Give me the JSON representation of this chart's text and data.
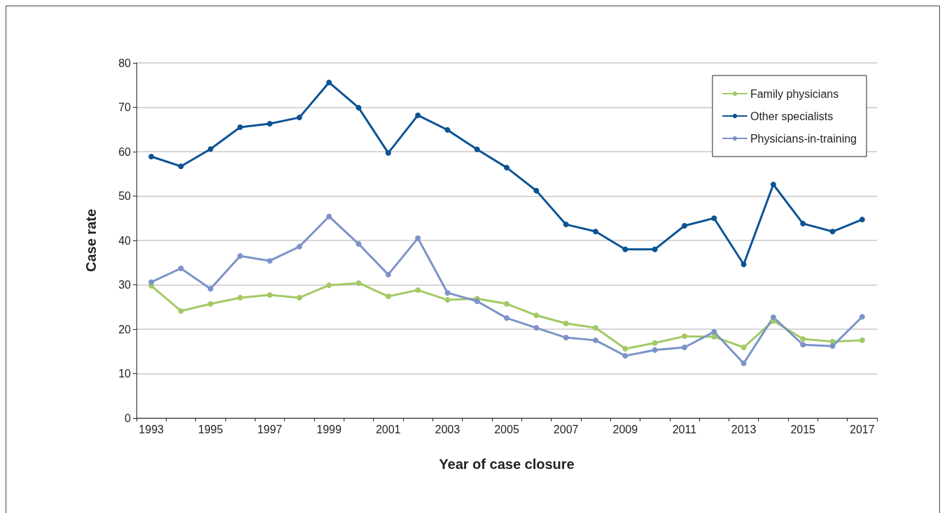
{
  "chart_data": {
    "type": "line",
    "xlabel": "Year of case closure",
    "ylabel": "Case rate",
    "categories": [
      "1993",
      null,
      "1995",
      null,
      "1997",
      null,
      "1999",
      null,
      "2001",
      null,
      "2003",
      null,
      "2005",
      null,
      "2007",
      null,
      "2009",
      null,
      "2011",
      null,
      "2013",
      null,
      "2015",
      null,
      "2017"
    ],
    "series": [
      {
        "name": "Family physicians",
        "color": "#a3c965",
        "values": [
          29.8,
          24.1,
          25.7,
          27.1,
          27.7,
          27.1,
          29.9,
          30.4,
          27.4,
          28.8,
          26.6,
          26.9,
          25.7,
          23.1,
          21.3,
          20.3,
          15.6,
          16.9,
          18.4,
          18.3,
          15.9,
          21.9,
          17.8,
          17.2,
          17.5
        ]
      },
      {
        "name": "Other specialists",
        "color": "#0b5394",
        "values": [
          58.9,
          56.7,
          60.6,
          65.5,
          66.3,
          67.7,
          75.6,
          69.9,
          59.7,
          68.2,
          64.9,
          60.5,
          56.4,
          51.2,
          43.6,
          42.0,
          38.0,
          38.0,
          43.3,
          45.0,
          34.6,
          52.6,
          43.8,
          42.0,
          44.7
        ]
      },
      {
        "name": "Physicians-in-training",
        "color": "#7b93c8",
        "values": [
          30.6,
          33.7,
          29.1,
          36.5,
          35.4,
          38.6,
          45.4,
          39.2,
          32.3,
          40.5,
          28.2,
          26.3,
          22.5,
          20.3,
          18.1,
          17.5,
          14.0,
          15.3,
          15.9,
          19.4,
          12.3,
          22.7,
          16.5,
          16.2,
          22.8
        ]
      }
    ],
    "ylim": [
      0,
      80
    ],
    "yticks": [
      0,
      10,
      20,
      30,
      40,
      50,
      60,
      70,
      80
    ],
    "grid": "y",
    "legend": "top right",
    "marker": "circle",
    "line_style": "solid"
  }
}
